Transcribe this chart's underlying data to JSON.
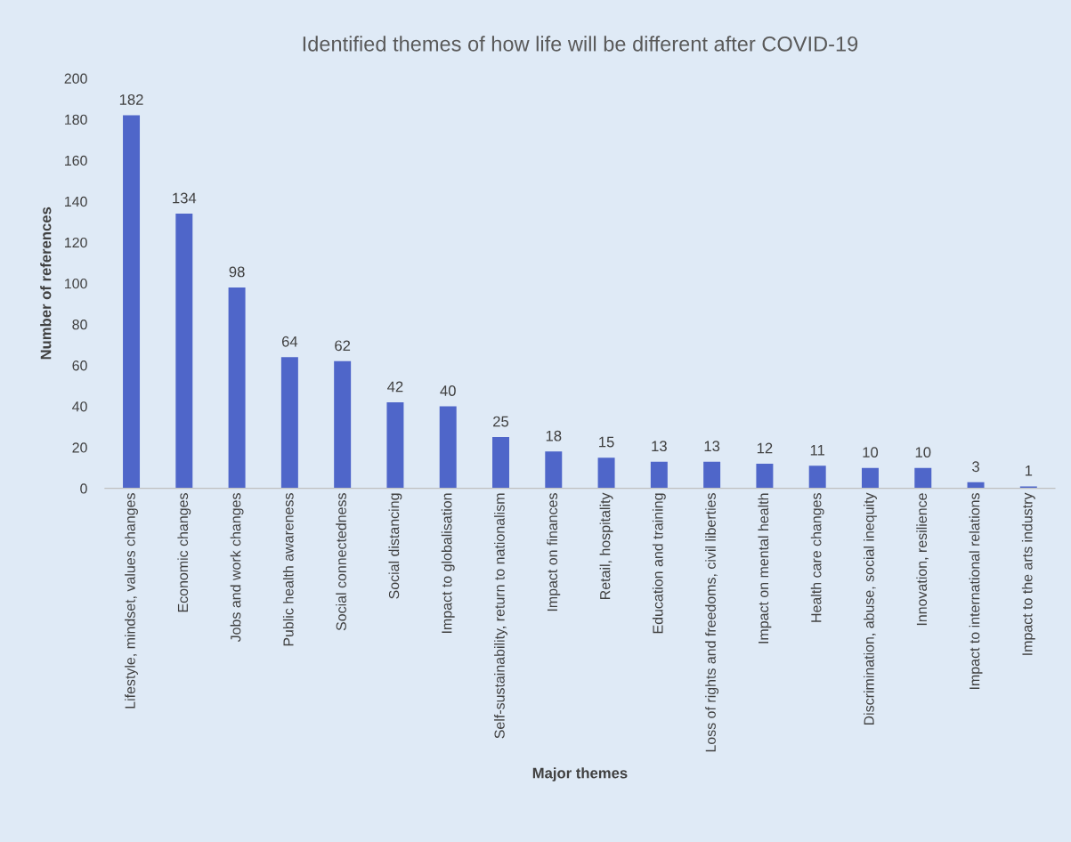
{
  "chart_data": {
    "type": "bar",
    "title": "Identified themes of how life will be different after COVID-19",
    "xlabel": "Major themes",
    "ylabel": "Number of references",
    "categories": [
      "Lifestyle, mindset, values changes",
      "Economic changes",
      "Jobs and work changes",
      "Public health awareness",
      "Social connectedness",
      "Social distancing",
      "Impact to globalisation",
      "Self-sustainability, return to nationalism",
      "Impact on finances",
      "Retail, hospitality",
      "Education and training",
      "Loss of rights and freedoms, civil liberties",
      "Impact on mental health",
      "Health care changes",
      "Discrimination, abuse, social inequity",
      "Innovation, resilience",
      "Impact to international relations",
      "Impact to the arts industry"
    ],
    "values": [
      182,
      134,
      98,
      64,
      62,
      42,
      40,
      25,
      18,
      15,
      13,
      13,
      12,
      11,
      10,
      10,
      3,
      1
    ],
    "color": "#4f66c9",
    "ylim": [
      0,
      200
    ],
    "yticks": [
      0,
      20,
      40,
      60,
      80,
      100,
      120,
      140,
      160,
      180,
      200
    ],
    "grid": false,
    "data_labels": true
  }
}
